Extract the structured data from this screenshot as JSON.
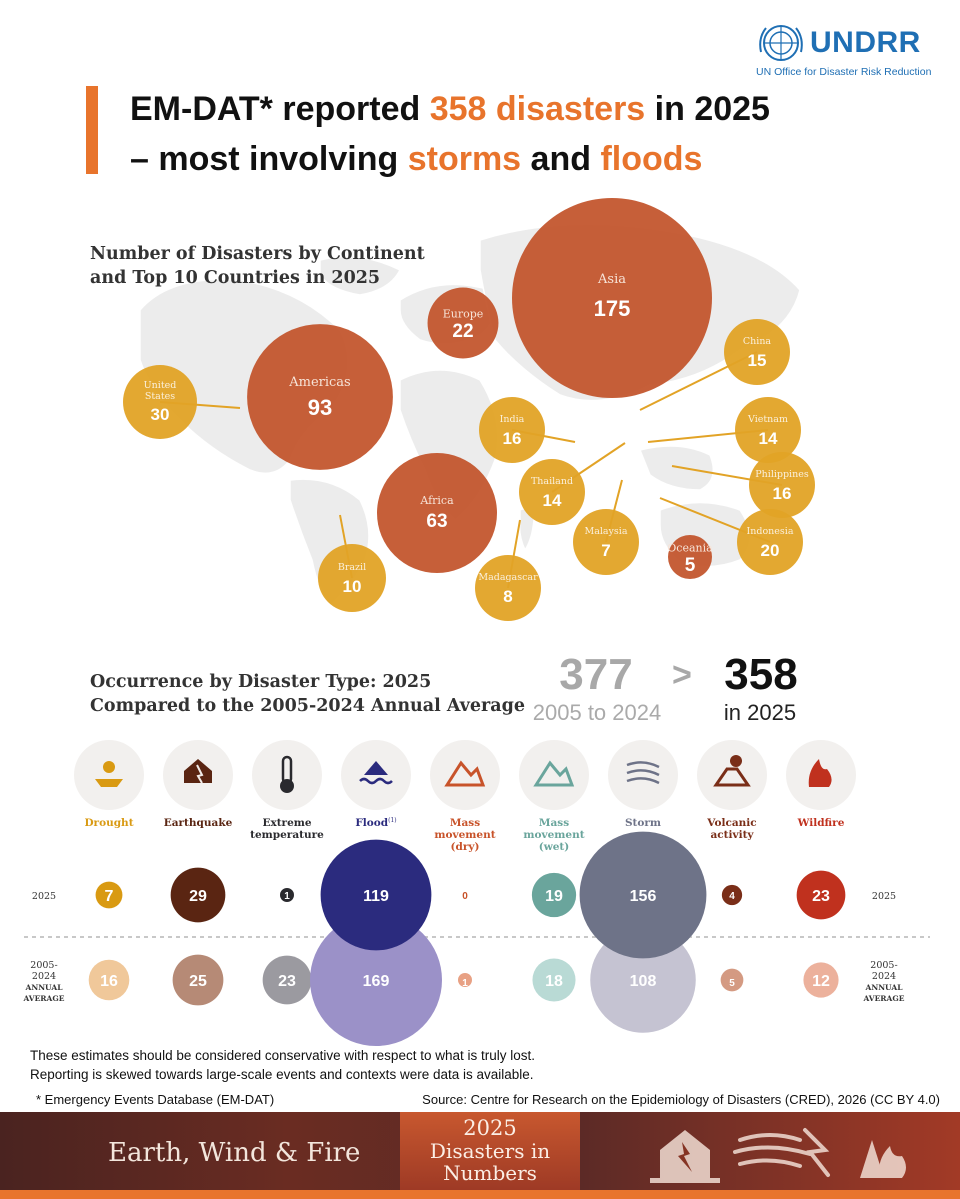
{
  "logo": {
    "name": "UNDRR",
    "subtitle": "UN Office for Disaster Risk Reduction"
  },
  "title": {
    "part1": "EM-DAT* reported ",
    "highlight1": "358 disasters",
    "part2": " in 2025",
    "part3": "– most involving ",
    "highlight2": "storms",
    "part4": " and ",
    "highlight3": "floods"
  },
  "colors": {
    "accent": "#e8742c",
    "continent": "#c2532a",
    "country": "#e2a326",
    "flood": "#2c2a7a",
    "storm": "#6e7388"
  },
  "comparison": {
    "avg_value": "377",
    "avg_label": "2005 to 2024",
    "symbol": ">",
    "current_value": "358",
    "current_label": "in 2025"
  },
  "chart_data": [
    {
      "type": "bubble-map",
      "title_line1": "Number of Disasters by Continent",
      "title_line2": "and Top 10 Countries in 2025",
      "continents": [
        {
          "name": "Asia",
          "value": 175
        },
        {
          "name": "Americas",
          "value": 93
        },
        {
          "name": "Africa",
          "value": 63
        },
        {
          "name": "Europe",
          "value": 22
        },
        {
          "name": "Oceania",
          "value": 5
        }
      ],
      "countries": [
        {
          "name": "United States",
          "label_lines": [
            "United",
            "States"
          ],
          "value": 30
        },
        {
          "name": "Brazil",
          "label_lines": [
            "Brazil"
          ],
          "value": 10
        },
        {
          "name": "Madagascar",
          "label_lines": [
            "Madagascar"
          ],
          "value": 8
        },
        {
          "name": "India",
          "label_lines": [
            "India"
          ],
          "value": 16
        },
        {
          "name": "Thailand",
          "label_lines": [
            "Thailand"
          ],
          "value": 14
        },
        {
          "name": "Malaysia",
          "label_lines": [
            "Malaysia"
          ],
          "value": 7
        },
        {
          "name": "China",
          "label_lines": [
            "China"
          ],
          "value": 15
        },
        {
          "name": "Vietnam",
          "label_lines": [
            "Vietnam"
          ],
          "value": 14
        },
        {
          "name": "Philippines",
          "label_lines": [
            "Philippines"
          ],
          "value": 16
        },
        {
          "name": "Indonesia",
          "label_lines": [
            "Indonesia"
          ],
          "value": 20
        }
      ]
    },
    {
      "type": "bubble-comparison",
      "title_line1": "Occurrence by Disaster Type: 2025",
      "title_line2": "Compared to the 2005-2024 Annual Average",
      "row_labels": {
        "current": "2025",
        "average_line1": "2005-",
        "average_line2": "2024",
        "average_line3": "ANNUAL",
        "average_line4": "AVERAGE"
      },
      "categories": [
        {
          "label_lines": [
            "Drought"
          ],
          "icon": "drought-icon",
          "value_2025": 7,
          "value_avg": 16,
          "color": "#d99a12",
          "color_avg": "#f0c89a",
          "label_color": "#d99a12"
        },
        {
          "label_lines": [
            "Earthquake"
          ],
          "icon": "earthquake-icon",
          "value_2025": 29,
          "value_avg": 25,
          "color": "#5a2512",
          "color_avg": "#b68a76",
          "label_color": "#5a2512"
        },
        {
          "label_lines": [
            "Extreme",
            "temperature"
          ],
          "icon": "thermometer-icon",
          "value_2025": 1,
          "value_avg": 23,
          "color": "#2a2a2e",
          "color_avg": "#9b9aa0",
          "label_color": "#2a2a2e"
        },
        {
          "label_lines": [
            "Flood"
          ],
          "label_sup": "(1)",
          "icon": "flood-icon",
          "value_2025": 119,
          "value_avg": 169,
          "color": "#2b2b7e",
          "color_avg": "#9b91c8",
          "label_color": "#2b2b7e"
        },
        {
          "label_lines": [
            "Mass",
            "movement",
            "(dry)"
          ],
          "icon": "mass-movement-dry-icon",
          "value_2025": 0,
          "value_avg": 1,
          "color": "#c8532a",
          "color_avg": "#e8a184",
          "label_color": "#c8532a"
        },
        {
          "label_lines": [
            "Mass",
            "movement",
            "(wet)"
          ],
          "icon": "mass-movement-wet-icon",
          "value_2025": 19,
          "value_avg": 18,
          "color": "#6aa59c",
          "color_avg": "#b9dad5",
          "label_color": "#6aa59c"
        },
        {
          "label_lines": [
            "Storm"
          ],
          "icon": "storm-icon",
          "value_2025": 156,
          "value_avg": 108,
          "color": "#6e7388",
          "color_avg": "#c5c3d2",
          "label_color": "#6e7388"
        },
        {
          "label_lines": [
            "Volcanic",
            "activity"
          ],
          "icon": "volcano-icon",
          "value_2025": 4,
          "value_avg": 5,
          "color": "#7a2e18",
          "color_avg": "#d49a82",
          "label_color": "#7a2e18"
        },
        {
          "label_lines": [
            "Wildfire"
          ],
          "icon": "wildfire-icon",
          "value_2025": 23,
          "value_avg": 12,
          "color": "#c0311e",
          "color_avg": "#ecb19c",
          "label_color": "#c0311e"
        }
      ]
    }
  ],
  "note_line1": "These estimates should be considered conservative with respect to what is truly lost.",
  "note_line2": "Reporting is skewed towards large-scale events and contexts were data is available.",
  "footnote": "* Emergency Events Database (EM-DAT)",
  "source": "Source: Centre for Research on the Epidemiology of Disasters (CRED), 2026 (CC BY 4.0)",
  "banner": {
    "left": "Earth, Wind & Fire",
    "year": "2025",
    "sub_line1": "Disasters in",
    "sub_line2": "Numbers"
  }
}
